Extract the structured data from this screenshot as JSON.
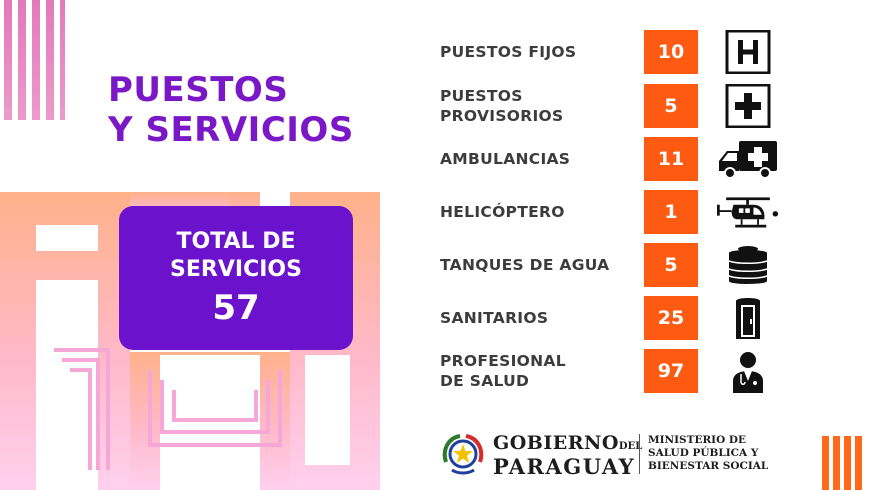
{
  "title": {
    "line1": "PUESTOS",
    "line2": "Y SERVICIOS"
  },
  "total": {
    "label_line1": "TOTAL DE",
    "label_line2": "SERVICIOS",
    "value": "57"
  },
  "rows": [
    {
      "label_line1": "PUESTOS FIJOS",
      "label_line2": "",
      "value": "10",
      "icon": "hospital-sign-icon"
    },
    {
      "label_line1": "PUESTOS",
      "label_line2": "PROVISORIOS",
      "value": "5",
      "icon": "medical-cross-icon"
    },
    {
      "label_line1": "AMBULANCIAS",
      "label_line2": "",
      "value": "11",
      "icon": "ambulance-icon"
    },
    {
      "label_line1": "HELICÓPTERO",
      "label_line2": "",
      "value": "1",
      "icon": "helicopter-icon"
    },
    {
      "label_line1": "TANQUES DE AGUA",
      "label_line2": "",
      "value": "5",
      "icon": "water-tank-icon"
    },
    {
      "label_line1": "SANITARIOS",
      "label_line2": "",
      "value": "25",
      "icon": "portable-toilet-icon"
    },
    {
      "label_line1": "PROFESIONAL",
      "label_line2": "DE SALUD",
      "value": "97",
      "icon": "doctor-icon"
    }
  ],
  "footer": {
    "gobierno_line1": "GOBIERNO",
    "gobierno_del": "DEL",
    "gobierno_line2": "PARAGUAY",
    "ministerio_line1": "MINISTERIO DE",
    "ministerio_line2": "SALUD PÚBLICA Y",
    "ministerio_line3": "BIENESTAR SOCIAL"
  },
  "colors": {
    "accent_purple": "#6a12cc",
    "title_purple": "#7a18c8",
    "value_orange": "#ff5a12",
    "label_gray": "#3c3c3c"
  }
}
